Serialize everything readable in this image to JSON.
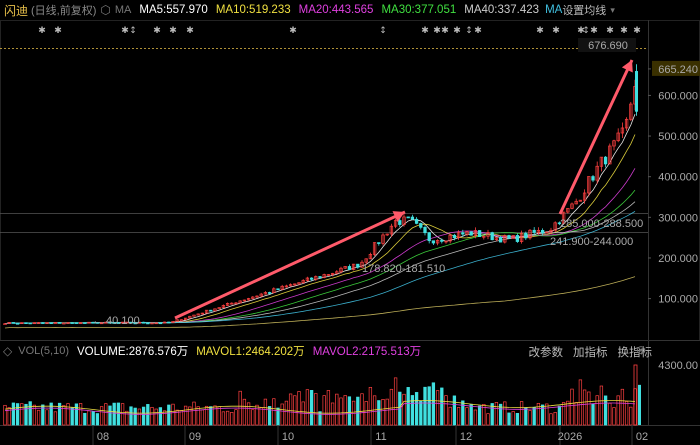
{
  "header": {
    "stock_name": "闪迪",
    "mode": "(日线,前复权)",
    "settings_icon": "hexagon-settings-icon",
    "ma_label": "MA",
    "ma": [
      {
        "label": "MA5:557.970",
        "color": "#ffffff"
      },
      {
        "label": "MA10:519.233",
        "color": "#f0e040"
      },
      {
        "label": "MA20:443.565",
        "color": "#e040e0"
      },
      {
        "label": "MA30:377.051",
        "color": "#40e040"
      },
      {
        "label": "MA40:337.423",
        "color": "#cccccc"
      },
      {
        "label": "MA",
        "color": "#40c0e0"
      }
    ],
    "settings_label": "设置均线",
    "dropdown_icon": "caret-down-icon"
  },
  "volume_header": {
    "menu_icon": "toggle-icon",
    "vol_label": "VOL(5,10)",
    "volume": {
      "label": "VOLUME:2876.576万",
      "color": "#ffffff"
    },
    "mavol1": {
      "label": "MAVOL1:2464.202万",
      "color": "#f0e040"
    },
    "mavol2": {
      "label": "MAVOL2:2175.513万",
      "color": "#e040e0"
    },
    "buttons": [
      "改参数",
      "加指标",
      "换指标"
    ],
    "close_icon": "close-icon"
  },
  "price_axis": [
    "665.240",
    "600.000",
    "500.000",
    "400.000",
    "300.000",
    "200.000",
    "100.000"
  ],
  "volume_axis": [
    "4300.00"
  ],
  "time_axis": [
    "08",
    "09",
    "10",
    "11",
    "12",
    "2026",
    "02"
  ],
  "annotations": {
    "high": "676.690",
    "low": "40.100",
    "mid1": "178.820-181.510",
    "mid2": "285.000-288.500",
    "mid3": "241.900-244.000"
  },
  "colors": {
    "up": "#ff4040",
    "down": "#40e0e0",
    "arrow": "#ff5a6a",
    "ref": "#e8c04a"
  }
}
